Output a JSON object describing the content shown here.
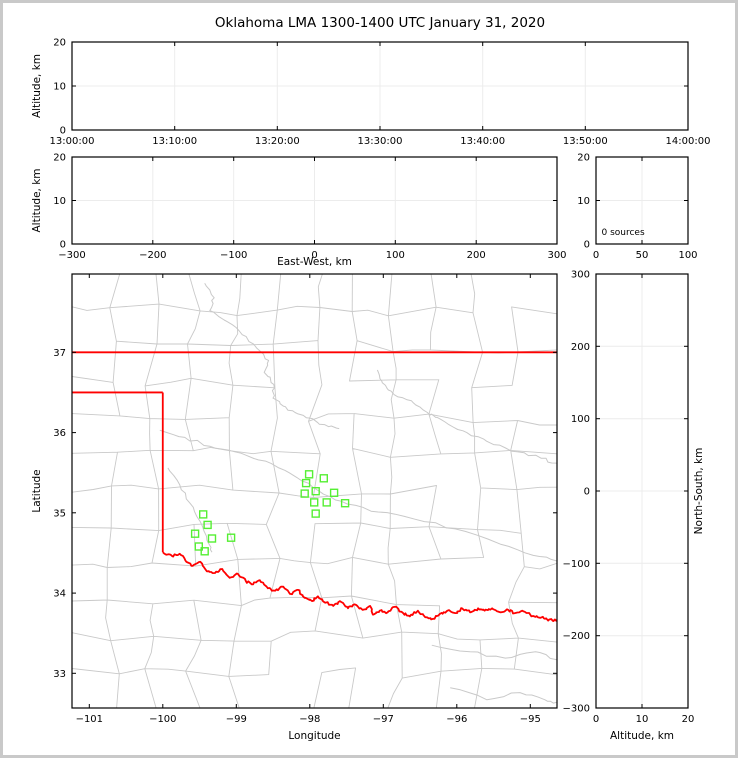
{
  "title": "Oklahoma LMA 1300-1400 UTC January 31, 2020",
  "colors": {
    "background": "#ffffff",
    "frame_border": "#c9c9c9",
    "axis": "#000000",
    "grid": "#ececec",
    "county_line": "#c9c9c9",
    "state_border_red": "#ff0000",
    "station_green": "#55ef33"
  },
  "chart_data": [
    {
      "id": "time_altitude",
      "type": "scatter",
      "xlabel": "",
      "ylabel": "Altitude, km",
      "xlim": [
        0,
        3600
      ],
      "xticks": [
        0,
        600,
        1200,
        1800,
        2400,
        3000,
        3600
      ],
      "xtick_labels": [
        "13:00:00",
        "13:10:00",
        "13:20:00",
        "13:30:00",
        "13:40:00",
        "13:50:00",
        "14:00:00"
      ],
      "ylim": [
        0,
        20
      ],
      "yticks": [
        0,
        10,
        20
      ],
      "ytick_labels": [
        "0",
        "10",
        "20"
      ],
      "grid": true,
      "points": []
    },
    {
      "id": "eastwest_altitude",
      "type": "scatter",
      "xlabel": "East-West, km",
      "ylabel": "Altitude, km",
      "xlim": [
        -300,
        300
      ],
      "xticks": [
        -300,
        -200,
        -100,
        0,
        100,
        200,
        300
      ],
      "xtick_labels": [
        "−300",
        "−200",
        "−100",
        "0",
        "100",
        "200",
        "300"
      ],
      "ylim": [
        0,
        20
      ],
      "yticks": [
        0,
        10,
        20
      ],
      "ytick_labels": [
        "0",
        "10",
        "20"
      ],
      "grid": true,
      "points": []
    },
    {
      "id": "source_histogram",
      "type": "line",
      "xlabel": "",
      "ylabel": "",
      "xlim": [
        0,
        100
      ],
      "xticks": [
        0,
        50,
        100
      ],
      "xtick_labels": [
        "0",
        "50",
        "100"
      ],
      "ylim": [
        0,
        20
      ],
      "yticks": [
        0,
        10,
        20
      ],
      "ytick_labels": [
        "0",
        "10",
        "20"
      ],
      "grid": true,
      "annotation": "0 sources",
      "source_count": 0,
      "points": []
    },
    {
      "id": "plan_view_map",
      "type": "scatter",
      "xlabel": "Longitude",
      "ylabel": "Latitude",
      "xlim": [
        -101.235,
        -94.637
      ],
      "xticks": [
        -101,
        -100,
        -99,
        -98,
        -97,
        -96,
        -95
      ],
      "xtick_labels": [
        "−101",
        "−100",
        "−99",
        "−98",
        "−97",
        "−96",
        "−95"
      ],
      "ylim": [
        32.568,
        37.976
      ],
      "yticks": [
        33,
        34,
        35,
        36,
        37
      ],
      "ytick_labels": [
        "33",
        "34",
        "35",
        "36",
        "37"
      ],
      "grid": false,
      "points": [],
      "stations": [
        [
          -98.01,
          35.48
        ],
        [
          -97.81,
          35.43
        ],
        [
          -98.05,
          35.37
        ],
        [
          -97.92,
          35.27
        ],
        [
          -98.07,
          35.24
        ],
        [
          -97.67,
          35.25
        ],
        [
          -97.94,
          35.13
        ],
        [
          -97.77,
          35.13
        ],
        [
          -97.52,
          35.12
        ],
        [
          -97.92,
          34.99
        ],
        [
          -99.45,
          34.98
        ],
        [
          -99.39,
          34.85
        ],
        [
          -99.56,
          34.74
        ],
        [
          -99.33,
          34.68
        ],
        [
          -99.07,
          34.69
        ],
        [
          -99.51,
          34.58
        ],
        [
          -99.43,
          34.52
        ]
      ],
      "state_border": {
        "segments": [
          [
            [
              -101.235,
              37.0
            ],
            [
              -94.637,
              37.0
            ]
          ],
          [
            [
              -101.235,
              36.5
            ],
            [
              -100.0,
              36.5
            ]
          ],
          [
            [
              -100.0,
              36.5
            ],
            [
              -100.0,
              34.51
            ]
          ]
        ],
        "red_river": [
          [
            -100.0,
            34.51
          ],
          [
            -99.87,
            34.46
          ],
          [
            -99.77,
            34.49
          ],
          [
            -99.68,
            34.39
          ],
          [
            -99.59,
            34.34
          ],
          [
            -99.49,
            34.39
          ],
          [
            -99.4,
            34.27
          ],
          [
            -99.29,
            34.25
          ],
          [
            -99.19,
            34.3
          ],
          [
            -99.09,
            34.19
          ],
          [
            -98.98,
            34.24
          ],
          [
            -98.87,
            34.15
          ],
          [
            -98.77,
            34.11
          ],
          [
            -98.68,
            34.16
          ],
          [
            -98.57,
            34.06
          ],
          [
            -98.47,
            34.03
          ],
          [
            -98.36,
            34.08
          ],
          [
            -98.27,
            33.99
          ],
          [
            -98.16,
            34.04
          ],
          [
            -98.07,
            33.94
          ],
          [
            -97.97,
            33.9
          ],
          [
            -97.89,
            33.96
          ],
          [
            -97.79,
            33.88
          ],
          [
            -97.68,
            33.84
          ],
          [
            -97.59,
            33.9
          ],
          [
            -97.48,
            33.81
          ],
          [
            -97.39,
            33.86
          ],
          [
            -97.28,
            33.79
          ],
          [
            -97.18,
            33.84
          ],
          [
            -97.14,
            33.73
          ],
          [
            -97.05,
            33.78
          ],
          [
            -96.94,
            33.76
          ],
          [
            -96.84,
            33.83
          ],
          [
            -96.73,
            33.75
          ],
          [
            -96.64,
            33.71
          ],
          [
            -96.53,
            33.78
          ],
          [
            -96.43,
            33.7
          ],
          [
            -96.32,
            33.68
          ],
          [
            -96.23,
            33.74
          ],
          [
            -96.13,
            33.78
          ],
          [
            -96.02,
            33.75
          ],
          [
            -95.93,
            33.81
          ],
          [
            -95.82,
            33.76
          ],
          [
            -95.71,
            33.81
          ],
          [
            -95.62,
            33.78
          ],
          [
            -95.52,
            33.81
          ],
          [
            -95.41,
            33.76
          ],
          [
            -95.3,
            33.79
          ],
          [
            -95.21,
            33.75
          ],
          [
            -95.11,
            33.78
          ],
          [
            -95.0,
            33.73
          ],
          [
            -94.9,
            33.7
          ],
          [
            -94.8,
            33.68
          ],
          [
            -94.7,
            33.66
          ],
          [
            -94.637,
            33.65
          ]
        ]
      },
      "rivers": [
        [
          [
            -99.43,
            37.86
          ],
          [
            -99.3,
            37.68
          ],
          [
            -99.36,
            37.52
          ],
          [
            -99.12,
            37.38
          ],
          [
            -98.92,
            37.22
          ],
          [
            -98.72,
            37.05
          ],
          [
            -98.56,
            36.9
          ],
          [
            -98.62,
            36.75
          ],
          [
            -98.49,
            36.6
          ],
          [
            -98.5,
            36.43
          ],
          [
            -98.36,
            36.33
          ],
          [
            -98.2,
            36.25
          ],
          [
            -98.0,
            36.18
          ],
          [
            -97.8,
            36.1
          ],
          [
            -97.6,
            36.05
          ]
        ],
        [
          [
            -97.08,
            36.78
          ],
          [
            -97.02,
            36.64
          ],
          [
            -96.93,
            36.53
          ],
          [
            -96.77,
            36.44
          ],
          [
            -96.59,
            36.37
          ],
          [
            -96.4,
            36.25
          ],
          [
            -96.27,
            36.19
          ],
          [
            -96.05,
            36.07
          ],
          [
            -95.8,
            35.96
          ],
          [
            -95.5,
            35.85
          ],
          [
            -95.18,
            35.76
          ],
          [
            -94.85,
            35.68
          ],
          [
            -94.637,
            35.62
          ]
        ],
        [
          [
            -100.04,
            36.03
          ],
          [
            -99.7,
            35.94
          ],
          [
            -99.36,
            35.83
          ],
          [
            -99.02,
            35.76
          ],
          [
            -98.7,
            35.66
          ],
          [
            -98.34,
            35.53
          ],
          [
            -98.02,
            35.37
          ],
          [
            -97.72,
            35.2
          ],
          [
            -97.49,
            35.11
          ],
          [
            -97.07,
            35.01
          ],
          [
            -96.57,
            34.92
          ],
          [
            -96.02,
            34.8
          ],
          [
            -95.41,
            34.61
          ],
          [
            -94.96,
            34.47
          ],
          [
            -94.637,
            34.4
          ]
        ],
        [
          [
            -99.93,
            35.56
          ],
          [
            -99.77,
            35.35
          ],
          [
            -99.63,
            35.12
          ],
          [
            -99.49,
            34.89
          ],
          [
            -99.4,
            34.66
          ],
          [
            -99.33,
            34.51
          ]
        ],
        [
          [
            -96.34,
            33.35
          ],
          [
            -95.82,
            33.27
          ],
          [
            -95.34,
            33.19
          ],
          [
            -94.93,
            33.27
          ],
          [
            -94.637,
            33.17
          ]
        ],
        [
          [
            -96.09,
            32.82
          ],
          [
            -95.59,
            32.67
          ],
          [
            -95.14,
            32.76
          ],
          [
            -94.8,
            32.67
          ],
          [
            -94.637,
            32.64
          ]
        ]
      ]
    },
    {
      "id": "northsouth_altitude",
      "type": "scatter",
      "xlabel": "Altitude, km",
      "ylabel": "North-South, km",
      "xlim": [
        0,
        20
      ],
      "xticks": [
        0,
        10,
        20
      ],
      "xtick_labels": [
        "0",
        "10",
        "20"
      ],
      "ylim": [
        -300,
        300
      ],
      "yticks": [
        -300,
        -200,
        -100,
        0,
        100,
        200,
        300
      ],
      "ytick_labels": [
        "−300",
        "−200",
        "−100",
        "0",
        "100",
        "200",
        "300"
      ],
      "grid": true,
      "points": []
    }
  ]
}
